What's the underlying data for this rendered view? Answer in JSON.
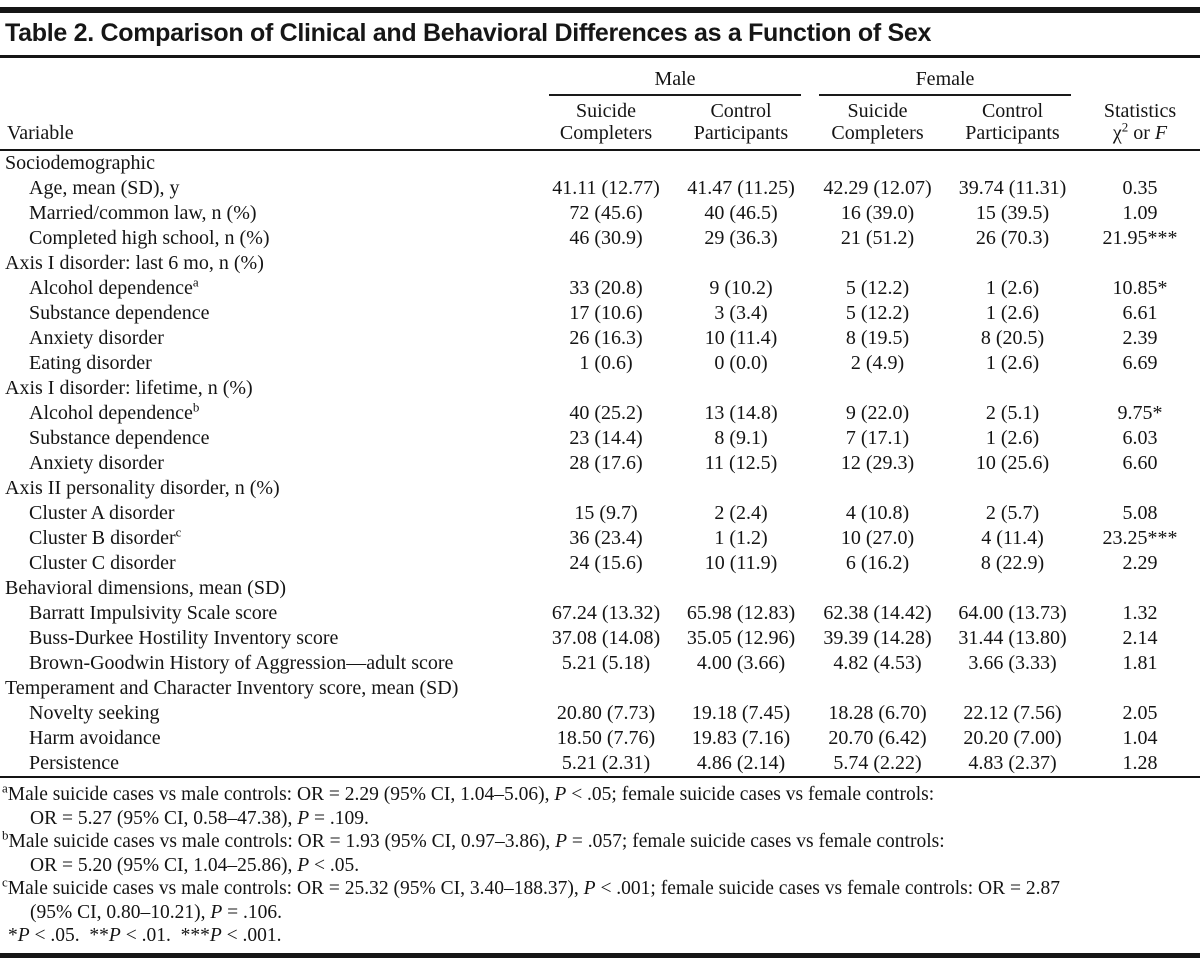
{
  "title": "Table 2. Comparison of Clinical and Behavioral Differences as a Function of Sex",
  "header": {
    "variable": "Variable",
    "male": "Male",
    "female": "Female",
    "subcols": [
      "Suicide Completers",
      "Control Participants",
      "Suicide Completers",
      "Control Participants"
    ],
    "stats_line1": "Statistics",
    "stats_chi": "χ",
    "stats_chi_sup": "2",
    "stats_or": " or ",
    "stats_f": "F"
  },
  "sections": [
    {
      "label": "Sociodemographic",
      "rows": [
        {
          "label": "Age, mean (SD), y",
          "values": [
            "41.11 (12.77)",
            "41.47 (11.25)",
            "42.29 (12.07)",
            "39.74 (11.31)"
          ],
          "stat": "0.35"
        },
        {
          "label": "Married/common law, n (%)",
          "values": [
            "72 (45.6)",
            "40 (46.5)",
            "16 (39.0)",
            "15 (39.5)"
          ],
          "stat": "1.09"
        },
        {
          "label": "Completed high school, n (%)",
          "values": [
            "46 (30.9)",
            "29 (36.3)",
            "21 (51.2)",
            "26 (70.3)"
          ],
          "stat": "21.95***"
        }
      ]
    },
    {
      "label": "Axis I disorder: last 6 mo, n (%)",
      "rows": [
        {
          "label": "Alcohol dependence",
          "sup": "a",
          "values": [
            "33 (20.8)",
            "9 (10.2)",
            "5 (12.2)",
            "1 (2.6)"
          ],
          "stat": "10.85*"
        },
        {
          "label": "Substance dependence",
          "values": [
            "17 (10.6)",
            "3 (3.4)",
            "5 (12.2)",
            "1 (2.6)"
          ],
          "stat": "6.61"
        },
        {
          "label": "Anxiety disorder",
          "values": [
            "26 (16.3)",
            "10 (11.4)",
            "8 (19.5)",
            "8 (20.5)"
          ],
          "stat": "2.39"
        },
        {
          "label": "Eating disorder",
          "values": [
            "1 (0.6)",
            "0 (0.0)",
            "2 (4.9)",
            "1 (2.6)"
          ],
          "stat": "6.69"
        }
      ]
    },
    {
      "label": "Axis I disorder: lifetime, n (%)",
      "rows": [
        {
          "label": "Alcohol dependence",
          "sup": "b",
          "values": [
            "40 (25.2)",
            "13 (14.8)",
            "9 (22.0)",
            "2 (5.1)"
          ],
          "stat": "9.75*"
        },
        {
          "label": "Substance dependence",
          "values": [
            "23 (14.4)",
            "8 (9.1)",
            "7 (17.1)",
            "1 (2.6)"
          ],
          "stat": "6.03"
        },
        {
          "label": "Anxiety disorder",
          "values": [
            "28 (17.6)",
            "11 (12.5)",
            "12 (29.3)",
            "10 (25.6)"
          ],
          "stat": "6.60"
        }
      ]
    },
    {
      "label": "Axis II personality disorder, n (%)",
      "rows": [
        {
          "label": "Cluster A disorder",
          "values": [
            "15 (9.7)",
            "2 (2.4)",
            "4 (10.8)",
            "2 (5.7)"
          ],
          "stat": "5.08"
        },
        {
          "label": "Cluster B disorder",
          "sup": "c",
          "values": [
            "36 (23.4)",
            "1 (1.2)",
            "10 (27.0)",
            "4 (11.4)"
          ],
          "stat": "23.25***"
        },
        {
          "label": "Cluster C disorder",
          "values": [
            "24 (15.6)",
            "10 (11.9)",
            "6 (16.2)",
            "8 (22.9)"
          ],
          "stat": "2.29"
        }
      ]
    },
    {
      "label": "Behavioral dimensions, mean (SD)",
      "rows": [
        {
          "label": "Barratt Impulsivity Scale score",
          "values": [
            "67.24 (13.32)",
            "65.98 (12.83)",
            "62.38 (14.42)",
            "64.00 (13.73)"
          ],
          "stat": "1.32"
        },
        {
          "label": "Buss-Durkee Hostility Inventory score",
          "values": [
            "37.08 (14.08)",
            "35.05 (12.96)",
            "39.39 (14.28)",
            "31.44 (13.80)"
          ],
          "stat": "2.14"
        },
        {
          "label": "Brown-Goodwin History of Aggression—adult score",
          "values": [
            "5.21 (5.18)",
            "4.00 (3.66)",
            "4.82 (4.53)",
            "3.66 (3.33)"
          ],
          "stat": "1.81"
        }
      ]
    },
    {
      "label": "Temperament and Character Inventory score, mean (SD)",
      "rows": [
        {
          "label": "Novelty seeking",
          "values": [
            "20.80 (7.73)",
            "19.18 (7.45)",
            "18.28 (6.70)",
            "22.12 (7.56)"
          ],
          "stat": "2.05"
        },
        {
          "label": "Harm avoidance",
          "values": [
            "18.50 (7.76)",
            "19.83 (7.16)",
            "20.70 (6.42)",
            "20.20 (7.00)"
          ],
          "stat": "1.04"
        },
        {
          "label": "Persistence",
          "values": [
            "5.21 (2.31)",
            "4.86 (2.14)",
            "5.74 (2.22)",
            "4.83 (2.37)"
          ],
          "stat": "1.28"
        }
      ]
    }
  ],
  "footnotes": [
    {
      "marker": "a",
      "lines": [
        "Male suicide cases vs male controls: OR = 2.29 (95% CI, 1.04–5.06), P < .05; female suicide cases vs female controls:",
        "OR = 5.27 (95% CI, 0.58–47.38), P = .109."
      ]
    },
    {
      "marker": "b",
      "lines": [
        "Male suicide cases vs male controls: OR = 1.93 (95% CI, 0.97–3.86), P = .057; female suicide cases vs female controls:",
        "OR = 5.20 (95% CI, 1.04–25.86), P < .05."
      ]
    },
    {
      "marker": "c",
      "lines": [
        "Male suicide cases vs male controls: OR = 25.32 (95% CI, 3.40–188.37), P < .001; female suicide cases vs female controls: OR = 2.87",
        "(95% CI, 0.80–10.21), P = .106."
      ]
    }
  ],
  "significance_note": "*P < .05.  **P < .01.  ***P < .001."
}
